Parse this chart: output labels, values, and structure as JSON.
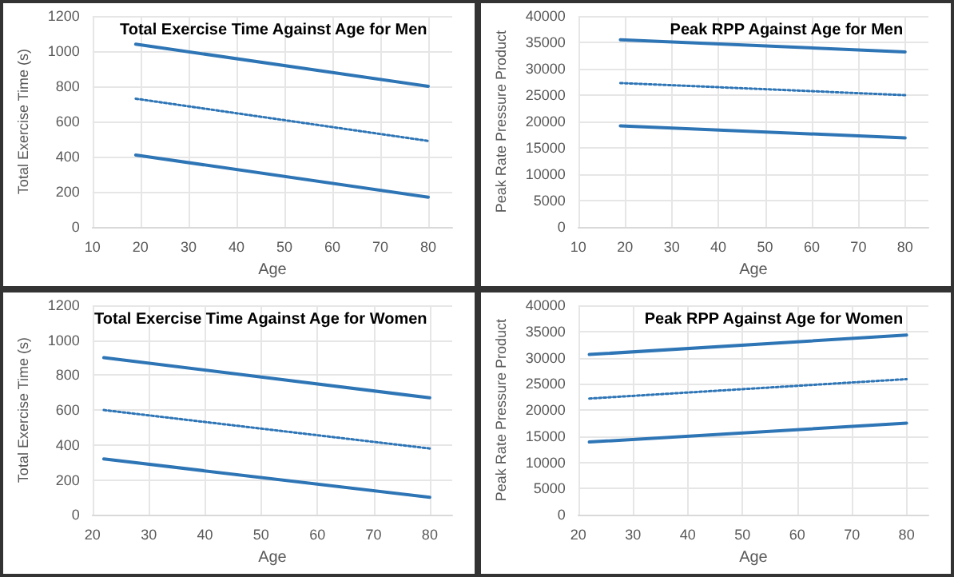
{
  "chart_data": [
    {
      "type": "line",
      "title": "Total Exercise Time Against Age for Men",
      "xlabel": "Age",
      "ylabel": "Total Exercise Time (s)",
      "xlim": [
        10,
        85
      ],
      "xticks": [
        10,
        20,
        30,
        40,
        50,
        60,
        70,
        80
      ],
      "ylim": [
        0,
        1200
      ],
      "yticks": [
        0,
        200,
        400,
        600,
        800,
        1000,
        1200
      ],
      "grid": true,
      "marker": "none",
      "series": [
        {
          "color": "#2e75b6",
          "x": [
            19,
            80
          ],
          "values": [
            1040,
            800
          ],
          "line_style": "solid"
        },
        {
          "color": "#2e75b6",
          "x": [
            19,
            80
          ],
          "values": [
            730,
            490
          ],
          "line_style": "dotted"
        },
        {
          "color": "#2e75b6",
          "x": [
            19,
            80
          ],
          "values": [
            410,
            170
          ],
          "line_style": "solid"
        }
      ]
    },
    {
      "type": "line",
      "title": "Peak RPP Against Age for Men",
      "xlabel": "Age",
      "ylabel": "Peak Rate Pressure Product",
      "xlim": [
        10,
        85
      ],
      "xticks": [
        10,
        20,
        30,
        40,
        50,
        60,
        70,
        80
      ],
      "ylim": [
        0,
        40000
      ],
      "yticks": [
        0,
        5000,
        10000,
        15000,
        20000,
        25000,
        30000,
        35000,
        40000
      ],
      "grid": true,
      "marker": "none",
      "series": [
        {
          "color": "#2e75b6",
          "x": [
            19,
            80
          ],
          "values": [
            35500,
            33200
          ],
          "line_style": "solid"
        },
        {
          "color": "#2e75b6",
          "x": [
            19,
            80
          ],
          "values": [
            27300,
            25000
          ],
          "line_style": "dotted"
        },
        {
          "color": "#2e75b6",
          "x": [
            19,
            80
          ],
          "values": [
            19200,
            16900
          ],
          "line_style": "solid"
        }
      ]
    },
    {
      "type": "line",
      "title": "Total Exercise Time Against Age for Women",
      "xlabel": "Age",
      "ylabel": "Total Exercise Time (s)",
      "xlim": [
        20,
        84
      ],
      "xticks": [
        20,
        30,
        40,
        50,
        60,
        70,
        80
      ],
      "ylim": [
        0,
        1200
      ],
      "yticks": [
        0,
        200,
        400,
        600,
        800,
        1000,
        1200
      ],
      "grid": true,
      "marker": "none",
      "series": [
        {
          "color": "#2e75b6",
          "x": [
            22,
            80
          ],
          "values": [
            900,
            670
          ],
          "line_style": "solid"
        },
        {
          "color": "#2e75b6",
          "x": [
            22,
            80
          ],
          "values": [
            600,
            380
          ],
          "line_style": "dotted"
        },
        {
          "color": "#2e75b6",
          "x": [
            22,
            80
          ],
          "values": [
            320,
            100
          ],
          "line_style": "solid"
        }
      ]
    },
    {
      "type": "line",
      "title": "Peak RPP Against Age for Women",
      "xlabel": "Age",
      "ylabel": "Peak Rate Pressure Product",
      "xlim": [
        20,
        84
      ],
      "xticks": [
        20,
        30,
        40,
        50,
        60,
        70,
        80
      ],
      "ylim": [
        0,
        40000
      ],
      "yticks": [
        0,
        5000,
        10000,
        15000,
        20000,
        25000,
        30000,
        35000,
        40000
      ],
      "grid": true,
      "marker": "none",
      "series": [
        {
          "color": "#2e75b6",
          "x": [
            22,
            80
          ],
          "values": [
            30600,
            34300
          ],
          "line_style": "solid"
        },
        {
          "color": "#2e75b6",
          "x": [
            22,
            80
          ],
          "values": [
            22200,
            25900
          ],
          "line_style": "dotted"
        },
        {
          "color": "#2e75b6",
          "x": [
            22,
            80
          ],
          "values": [
            13900,
            17500
          ],
          "line_style": "solid"
        }
      ]
    }
  ]
}
